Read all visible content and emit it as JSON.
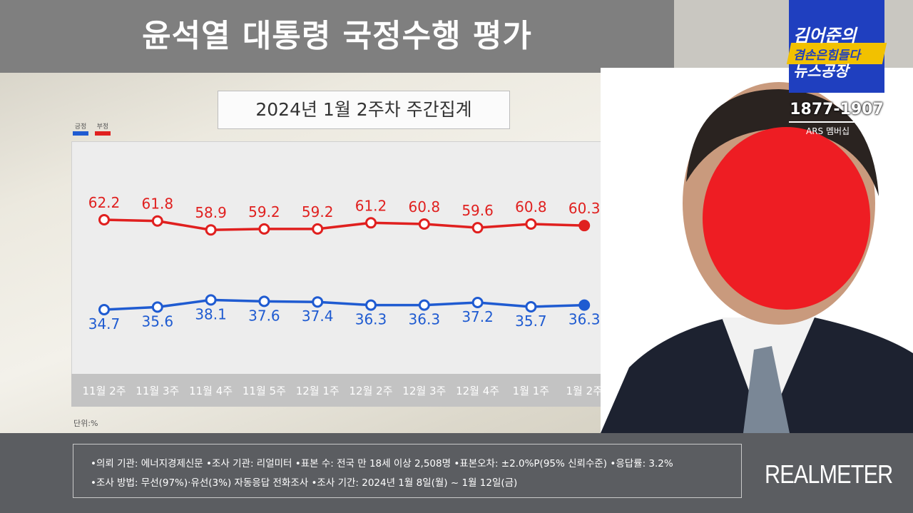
{
  "header": {
    "title": "윤석열 대통령 국정수행 평가"
  },
  "subtitle": "2024년 1월 2주차 주간집계",
  "legend": [
    {
      "label": "긍정",
      "color": "#1f5bd1"
    },
    {
      "label": "부정",
      "color": "#e0201f"
    }
  ],
  "unit_label": "단위:%",
  "chart_data": {
    "type": "line",
    "categories": [
      "11월 2주",
      "11월 3주",
      "11월 4주",
      "11월 5주",
      "12월 1주",
      "12월 2주",
      "12월 3주",
      "12월 4주",
      "1월 1주",
      "1월 2주"
    ],
    "series": [
      {
        "name": "부정",
        "color": "#e0201f",
        "values": [
          62.2,
          61.8,
          58.9,
          59.2,
          59.2,
          61.2,
          60.8,
          59.6,
          60.8,
          60.3
        ]
      },
      {
        "name": "긍정",
        "color": "#1f5bd1",
        "values": [
          34.7,
          35.6,
          38.1,
          37.6,
          37.4,
          36.3,
          36.3,
          37.2,
          35.7,
          36.3
        ]
      }
    ],
    "last_point_filled": true
  },
  "notes": {
    "line1": "•의뢰 기관: 에너지경제신문 •조사 기관: 리얼미터 •표본 수: 전국 만 18세 이상 2,508명 •표본오차: ±2.0%P(95% 신뢰수준) •응답률: 3.2%",
    "line2": "•조사 방법: 무선(97%)·유선(3%) 자동응답 전화조사 •조사 기간: 2024년 1월 8일(월) ~ 1월 12일(금)"
  },
  "brand": "REALMETER",
  "logo": {
    "line1": "김어준의",
    "line2": "겸손은힘들다",
    "line3": "뉴스공장"
  },
  "phone": "1877-1907",
  "ars": "ARS 멤버십",
  "icons": {
    "photo": "person-photo-icon"
  }
}
